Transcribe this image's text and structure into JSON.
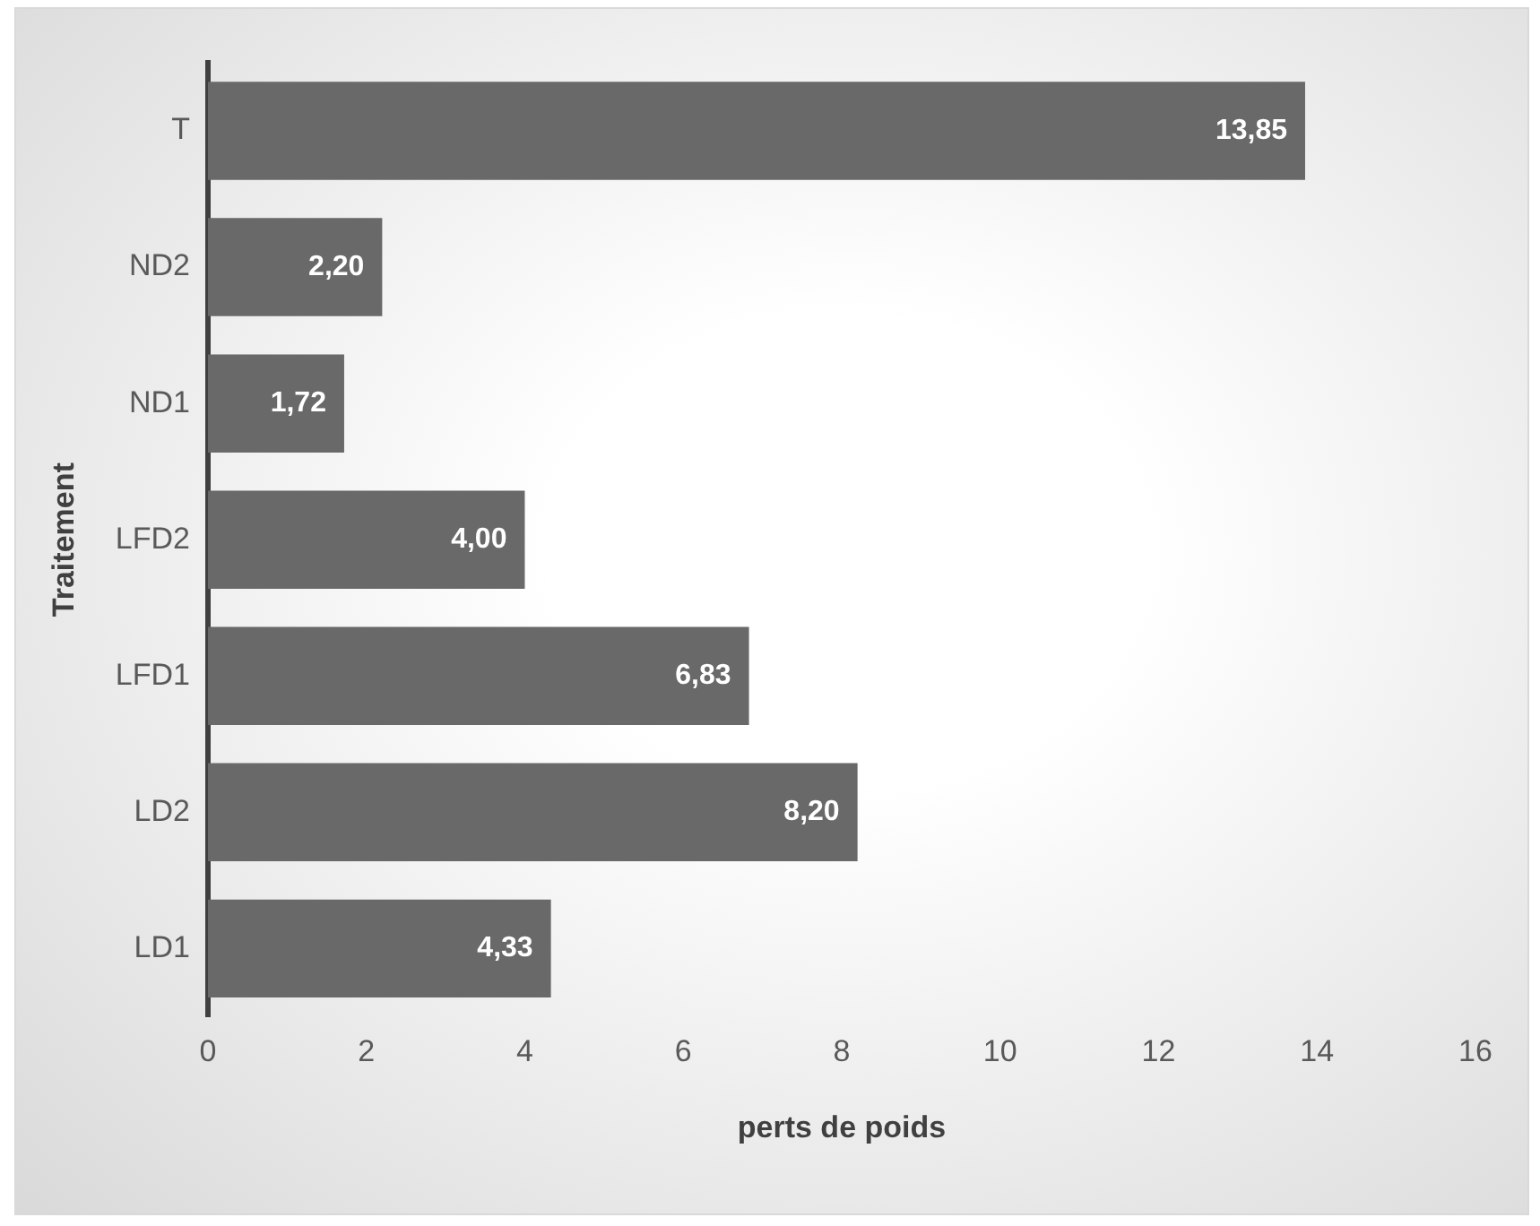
{
  "chart_data": {
    "type": "bar",
    "orientation": "horizontal",
    "xlabel": "perts de poids",
    "ylabel": "Traitement",
    "categories": [
      "T",
      "ND2",
      "ND1",
      "LFD2",
      "LFD1",
      "LD2",
      "LD1"
    ],
    "values": [
      13.85,
      2.2,
      1.72,
      4.0,
      6.83,
      8.2,
      4.33
    ],
    "value_labels": [
      "13,85",
      "2,20",
      "1,72",
      "4,00",
      "6,83",
      "8,20",
      "4,33"
    ],
    "color": "#696969",
    "xlim": [
      0,
      16
    ],
    "xticks": [
      0,
      2,
      4,
      6,
      8,
      10,
      12,
      14,
      16
    ],
    "grid": false,
    "legend": false
  }
}
